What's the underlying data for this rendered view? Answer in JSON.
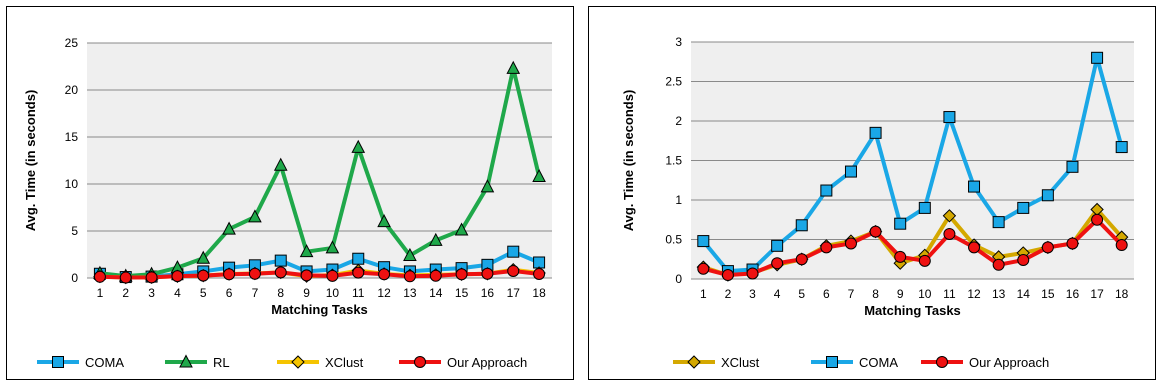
{
  "chart_data": [
    {
      "type": "line",
      "xlabel": "Matching Tasks",
      "ylabel": "Avg. Time (in seconds)",
      "ylim": [
        0,
        25
      ],
      "yticks": [
        "0",
        "5",
        "10",
        "15",
        "20",
        "25"
      ],
      "categories": [
        "1",
        "2",
        "3",
        "4",
        "5",
        "6",
        "7",
        "8",
        "9",
        "10",
        "11",
        "12",
        "13",
        "14",
        "15",
        "16",
        "17",
        "18"
      ],
      "grid": true,
      "legend_position": "bottom",
      "series": [
        {
          "name": "COMA",
          "color": "#1aa7e6",
          "marker": "square",
          "values": [
            0.45,
            0.1,
            0.15,
            0.4,
            0.7,
            1.1,
            1.35,
            1.85,
            0.7,
            0.9,
            2.05,
            1.15,
            0.7,
            0.9,
            1.05,
            1.4,
            2.8,
            1.65
          ]
        },
        {
          "name": "RL",
          "color": "#1fa84a",
          "marker": "triangle",
          "values": [
            0.5,
            0.2,
            0.4,
            1.1,
            2.1,
            5.2,
            6.5,
            12.0,
            2.8,
            3.2,
            13.9,
            6.0,
            2.4,
            4.0,
            5.1,
            9.7,
            22.3,
            10.8
          ]
        },
        {
          "name": "XClust",
          "color": "#f5c400",
          "marker": "diamond",
          "values": [
            0.15,
            0.05,
            0.08,
            0.18,
            0.25,
            0.42,
            0.48,
            0.6,
            0.2,
            0.3,
            0.8,
            0.43,
            0.28,
            0.33,
            0.4,
            0.45,
            0.88,
            0.53
          ]
        },
        {
          "name": "Our Approach",
          "color": "#ee1111",
          "marker": "circle",
          "values": [
            0.13,
            0.05,
            0.07,
            0.2,
            0.25,
            0.4,
            0.45,
            0.6,
            0.28,
            0.23,
            0.57,
            0.4,
            0.18,
            0.24,
            0.4,
            0.45,
            0.75,
            0.43
          ]
        }
      ]
    },
    {
      "type": "line",
      "xlabel": "Matching Tasks",
      "ylabel": "Avg. Time (in seconds)",
      "ylim": [
        0,
        3
      ],
      "yticks": [
        "0",
        "0.5",
        "1",
        "1.5",
        "2",
        "2.5",
        "3"
      ],
      "categories": [
        "1",
        "2",
        "3",
        "4",
        "5",
        "6",
        "7",
        "8",
        "9",
        "10",
        "11",
        "12",
        "13",
        "14",
        "15",
        "16",
        "17",
        "18"
      ],
      "grid": true,
      "legend_position": "bottom",
      "series": [
        {
          "name": "XClust",
          "color": "#d4a800",
          "marker": "diamond",
          "values": [
            0.15,
            0.05,
            0.08,
            0.18,
            0.25,
            0.42,
            0.48,
            0.6,
            0.2,
            0.3,
            0.8,
            0.43,
            0.28,
            0.33,
            0.4,
            0.45,
            0.88,
            0.53
          ]
        },
        {
          "name": "COMA",
          "color": "#1aa7e6",
          "marker": "square",
          "values": [
            0.48,
            0.1,
            0.12,
            0.42,
            0.68,
            1.12,
            1.36,
            1.85,
            0.7,
            0.9,
            2.05,
            1.17,
            0.72,
            0.9,
            1.06,
            1.42,
            2.8,
            1.67
          ]
        },
        {
          "name": "Our Approach",
          "color": "#ee1111",
          "marker": "circle",
          "values": [
            0.13,
            0.05,
            0.07,
            0.2,
            0.25,
            0.4,
            0.45,
            0.6,
            0.28,
            0.23,
            0.57,
            0.4,
            0.18,
            0.24,
            0.4,
            0.45,
            0.75,
            0.43
          ]
        }
      ]
    }
  ]
}
